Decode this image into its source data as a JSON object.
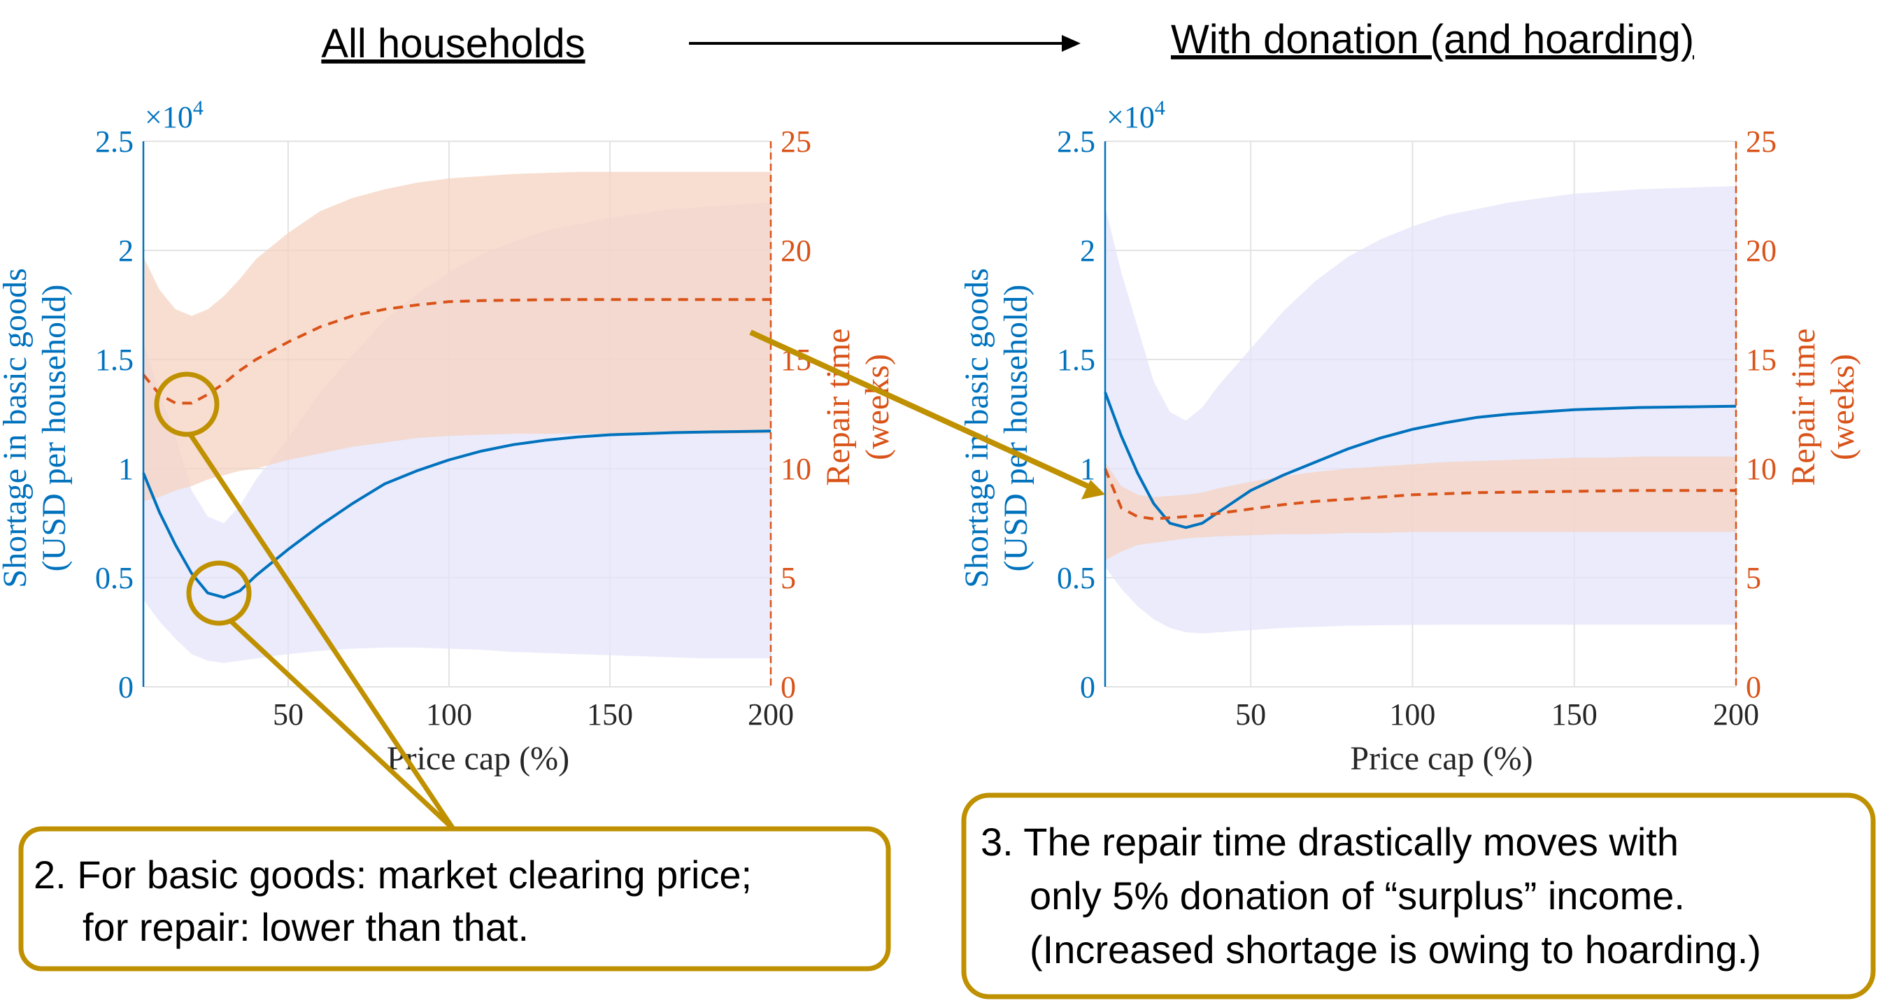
{
  "headings": {
    "left": "All households",
    "right": "With donation (and hoarding)"
  },
  "callouts": {
    "left": {
      "line1": "2. For basic goods: market clearing price;",
      "line2": "for repair: lower than that."
    },
    "right": {
      "line1": "3. The repair time drastically moves with",
      "line2": "only 5% donation of “surplus” income.",
      "line3": "(Increased shortage is owing to hoarding.)"
    }
  },
  "colors": {
    "shortage_line": "#0072BD",
    "repair_line": "#D95319",
    "shortage_band": "#E4E4FA",
    "repair_band": "#F6D3C2",
    "overlap_band": "#E8C9CB",
    "annotation": "#BF9000",
    "grid": "#E3E3E3"
  },
  "chart_data": [
    {
      "type": "line",
      "panel": "left",
      "title": "",
      "xlabel": "Price cap (%)",
      "ylabel_left": [
        "Shortage in basic goods",
        "(USD per household)"
      ],
      "ylabel_right": [
        "Repair time",
        "(weeks)"
      ],
      "y_exponent_label": "×10",
      "y_exponent_power": "4",
      "xlim": [
        5,
        200
      ],
      "ylim_left": [
        0,
        25000
      ],
      "ylim_right": [
        0,
        25
      ],
      "xticks": [
        50,
        100,
        150,
        200
      ],
      "xtick_labels": [
        "50",
        "100",
        "150",
        "200"
      ],
      "yticks_left": [
        0,
        5000,
        10000,
        15000,
        20000,
        25000
      ],
      "ytick_labels_left": [
        "0",
        "0.5",
        "1",
        "1.5",
        "2",
        "2.5"
      ],
      "yticks_right": [
        0,
        5,
        10,
        15,
        20,
        25
      ],
      "ytick_labels_right": [
        "0",
        "5",
        "10",
        "15",
        "20",
        "25"
      ],
      "grid": true,
      "series": [
        {
          "axis": "left",
          "style": "solid",
          "x": [
            5,
            10,
            15,
            20,
            25,
            30,
            35,
            40,
            50,
            60,
            70,
            80,
            90,
            100,
            110,
            120,
            130,
            140,
            150,
            160,
            170,
            180,
            190,
            200
          ],
          "y": [
            9800,
            8000,
            6500,
            5200,
            4300,
            4100,
            4400,
            5100,
            6300,
            7400,
            8400,
            9300,
            9900,
            10400,
            10800,
            11100,
            11300,
            11450,
            11550,
            11600,
            11650,
            11680,
            11700,
            11720
          ],
          "band_low": [
            4000,
            3000,
            2200,
            1500,
            1200,
            1100,
            1200,
            1300,
            1500,
            1650,
            1750,
            1800,
            1800,
            1750,
            1700,
            1600,
            1550,
            1500,
            1450,
            1400,
            1350,
            1300,
            1300,
            1300
          ],
          "band_high": [
            15800,
            13500,
            11500,
            9000,
            7800,
            7500,
            8300,
            9500,
            11400,
            13500,
            15200,
            16800,
            18000,
            19000,
            19800,
            20400,
            20900,
            21200,
            21500,
            21700,
            21900,
            22000,
            22100,
            22200
          ]
        },
        {
          "axis": "right",
          "style": "dashed",
          "x": [
            5,
            10,
            15,
            20,
            25,
            30,
            35,
            40,
            50,
            60,
            70,
            80,
            90,
            100,
            110,
            120,
            130,
            140,
            150,
            160,
            170,
            180,
            190,
            200
          ],
          "y": [
            14.3,
            13.4,
            13.0,
            13.0,
            13.4,
            13.9,
            14.5,
            15.0,
            15.8,
            16.5,
            17.0,
            17.3,
            17.5,
            17.65,
            17.7,
            17.72,
            17.74,
            17.75,
            17.75,
            17.75,
            17.75,
            17.75,
            17.75,
            17.75
          ],
          "band_low": [
            8.5,
            8.7,
            9.0,
            9.2,
            9.5,
            9.7,
            9.9,
            10.0,
            10.4,
            10.7,
            11.0,
            11.2,
            11.4,
            11.5,
            11.55,
            11.6,
            11.6,
            11.6,
            11.6,
            11.6,
            11.6,
            11.6,
            11.6,
            11.6
          ],
          "band_high": [
            19.7,
            18.2,
            17.3,
            17.0,
            17.3,
            17.9,
            18.7,
            19.6,
            20.8,
            21.8,
            22.4,
            22.8,
            23.1,
            23.3,
            23.4,
            23.5,
            23.55,
            23.6,
            23.6,
            23.6,
            23.6,
            23.6,
            23.6,
            23.6
          ]
        }
      ]
    },
    {
      "type": "line",
      "panel": "right",
      "title": "",
      "xlabel": "Price cap (%)",
      "ylabel_left": [
        "Shortage in basic goods",
        "(USD per household)"
      ],
      "ylabel_right": [
        "Repair time",
        "(weeks)"
      ],
      "y_exponent_label": "×10",
      "y_exponent_power": "4",
      "xlim": [
        5,
        200
      ],
      "ylim_left": [
        0,
        25000
      ],
      "ylim_right": [
        0,
        25
      ],
      "xticks": [
        50,
        100,
        150,
        200
      ],
      "xtick_labels": [
        "50",
        "100",
        "150",
        "200"
      ],
      "yticks_left": [
        0,
        5000,
        10000,
        15000,
        20000,
        25000
      ],
      "ytick_labels_left": [
        "0",
        "0.5",
        "1",
        "1.5",
        "2",
        "2.5"
      ],
      "yticks_right": [
        0,
        5,
        10,
        15,
        20,
        25
      ],
      "ytick_labels_right": [
        "0",
        "5",
        "10",
        "15",
        "20",
        "25"
      ],
      "grid": true,
      "series": [
        {
          "axis": "left",
          "style": "solid",
          "x": [
            5,
            10,
            15,
            20,
            25,
            30,
            35,
            40,
            50,
            60,
            70,
            80,
            90,
            100,
            110,
            120,
            130,
            140,
            150,
            160,
            170,
            180,
            190,
            200
          ],
          "y": [
            13500,
            11500,
            9800,
            8400,
            7500,
            7300,
            7500,
            8000,
            9000,
            9700,
            10300,
            10900,
            11400,
            11800,
            12100,
            12350,
            12500,
            12600,
            12700,
            12750,
            12800,
            12820,
            12840,
            12860
          ],
          "band_low": [
            5500,
            4500,
            3700,
            3100,
            2700,
            2500,
            2450,
            2500,
            2600,
            2700,
            2750,
            2800,
            2820,
            2840,
            2850,
            2850,
            2850,
            2850,
            2850,
            2850,
            2850,
            2850,
            2850,
            2850
          ],
          "band_high": [
            22000,
            19000,
            16500,
            14000,
            12600,
            12200,
            12800,
            13800,
            15500,
            17200,
            18600,
            19700,
            20500,
            21100,
            21600,
            21900,
            22200,
            22400,
            22600,
            22700,
            22800,
            22850,
            22900,
            22950
          ]
        },
        {
          "axis": "right",
          "style": "dashed",
          "x": [
            5,
            10,
            15,
            20,
            25,
            30,
            35,
            40,
            50,
            60,
            70,
            80,
            90,
            100,
            110,
            120,
            130,
            140,
            150,
            160,
            170,
            180,
            190,
            200
          ],
          "y": [
            10.0,
            8.2,
            7.8,
            7.7,
            7.75,
            7.8,
            7.85,
            7.95,
            8.15,
            8.35,
            8.5,
            8.6,
            8.7,
            8.8,
            8.85,
            8.9,
            8.92,
            8.94,
            8.96,
            8.98,
            9.0,
            9.0,
            9.0,
            9.0
          ],
          "band_low": [
            5.8,
            6.2,
            6.5,
            6.6,
            6.7,
            6.8,
            6.85,
            6.9,
            6.95,
            7.0,
            7.0,
            7.05,
            7.05,
            7.1,
            7.1,
            7.1,
            7.1,
            7.1,
            7.1,
            7.1,
            7.1,
            7.1,
            7.1,
            7.1
          ],
          "band_high": [
            10.3,
            9.2,
            8.8,
            8.7,
            8.75,
            8.8,
            8.9,
            9.1,
            9.4,
            9.65,
            9.85,
            10.0,
            10.1,
            10.2,
            10.3,
            10.35,
            10.4,
            10.45,
            10.5,
            10.5,
            10.55,
            10.55,
            10.55,
            10.55
          ]
        }
      ]
    }
  ]
}
